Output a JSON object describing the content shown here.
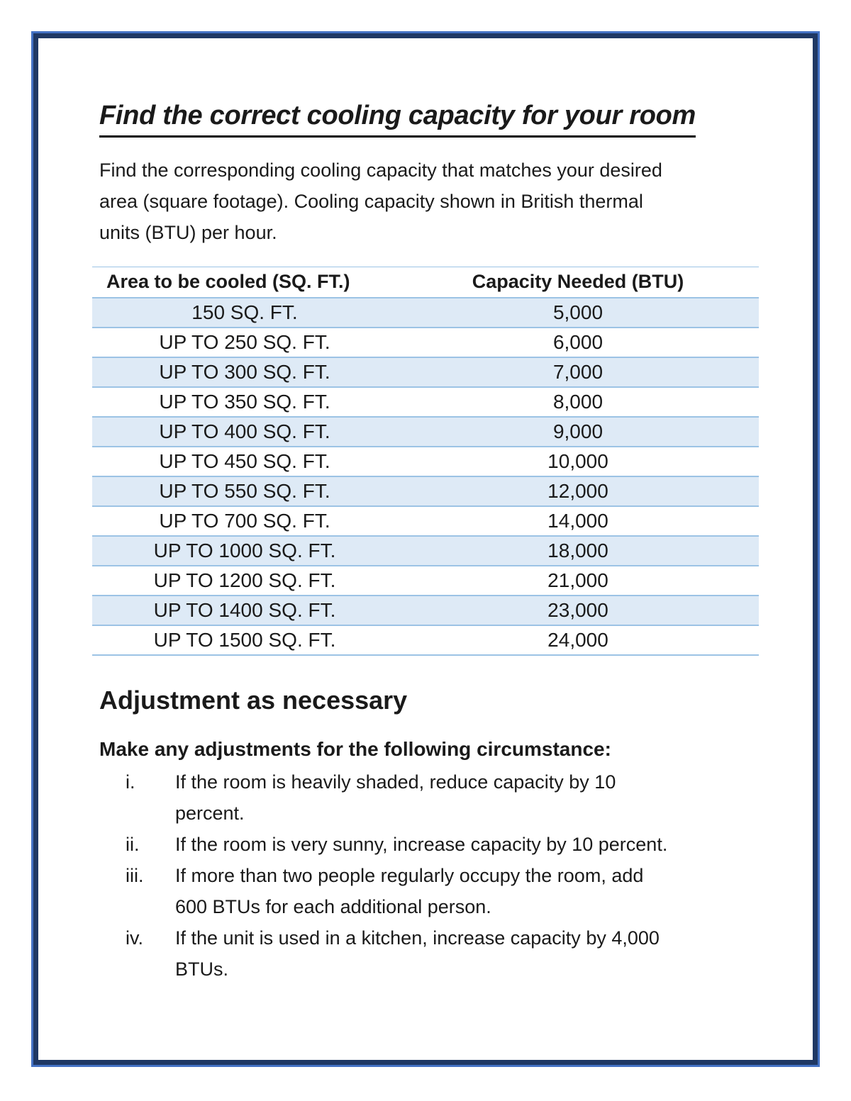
{
  "doc": {
    "title": "Find the correct cooling capacity for your room",
    "intro": "Find the corresponding cooling capacity that matches your desired\narea (square footage). Cooling capacity shown in British thermal\nunits (BTU) per hour."
  },
  "table": {
    "headers": [
      "Area to be cooled (SQ. FT.)",
      "Capacity Needed (BTU)"
    ],
    "rows": [
      [
        "150 SQ. FT.",
        "5,000"
      ],
      [
        "UP TO 250 SQ. FT.",
        "6,000"
      ],
      [
        "UP TO 300 SQ. FT.",
        "7,000"
      ],
      [
        "UP TO 350 SQ. FT.",
        "8,000"
      ],
      [
        "UP TO 400 SQ. FT.",
        "9,000"
      ],
      [
        "UP TO 450 SQ. FT.",
        "10,000"
      ],
      [
        "UP TO 550 SQ. FT.",
        "12,000"
      ],
      [
        "UP TO 700 SQ. FT.",
        "14,000"
      ],
      [
        "UP TO 1000 SQ. FT.",
        "18,000"
      ],
      [
        "UP TO 1200 SQ. FT.",
        "21,000"
      ],
      [
        "UP TO 1400 SQ. FT.",
        "23,000"
      ],
      [
        "UP TO 1500 SQ. FT.",
        "24,000"
      ]
    ]
  },
  "adjustment": {
    "heading": "Adjustment as necessary",
    "lead": "Make any adjustments for the following circumstance:",
    "items": [
      {
        "num": "i.",
        "text": "If the room is heavily shaded, reduce capacity by 10\npercent."
      },
      {
        "num": "ii.",
        "text": "If the room is very sunny, increase capacity by 10 percent."
      },
      {
        "num": "iii.",
        "text": "If more than two people regularly occupy the room, add\n600 BTUs for each additional person."
      },
      {
        "num": "iv.",
        "text": "If the unit is used in a kitchen, increase capacity by 4,000\nBTUs."
      }
    ]
  },
  "colors": {
    "border_outer": "#4472C4",
    "border_inner": "#1F3864",
    "row_stripe": "#DEEAF6",
    "table_line": "#9CC3E5",
    "text": "#1A1A1A"
  }
}
